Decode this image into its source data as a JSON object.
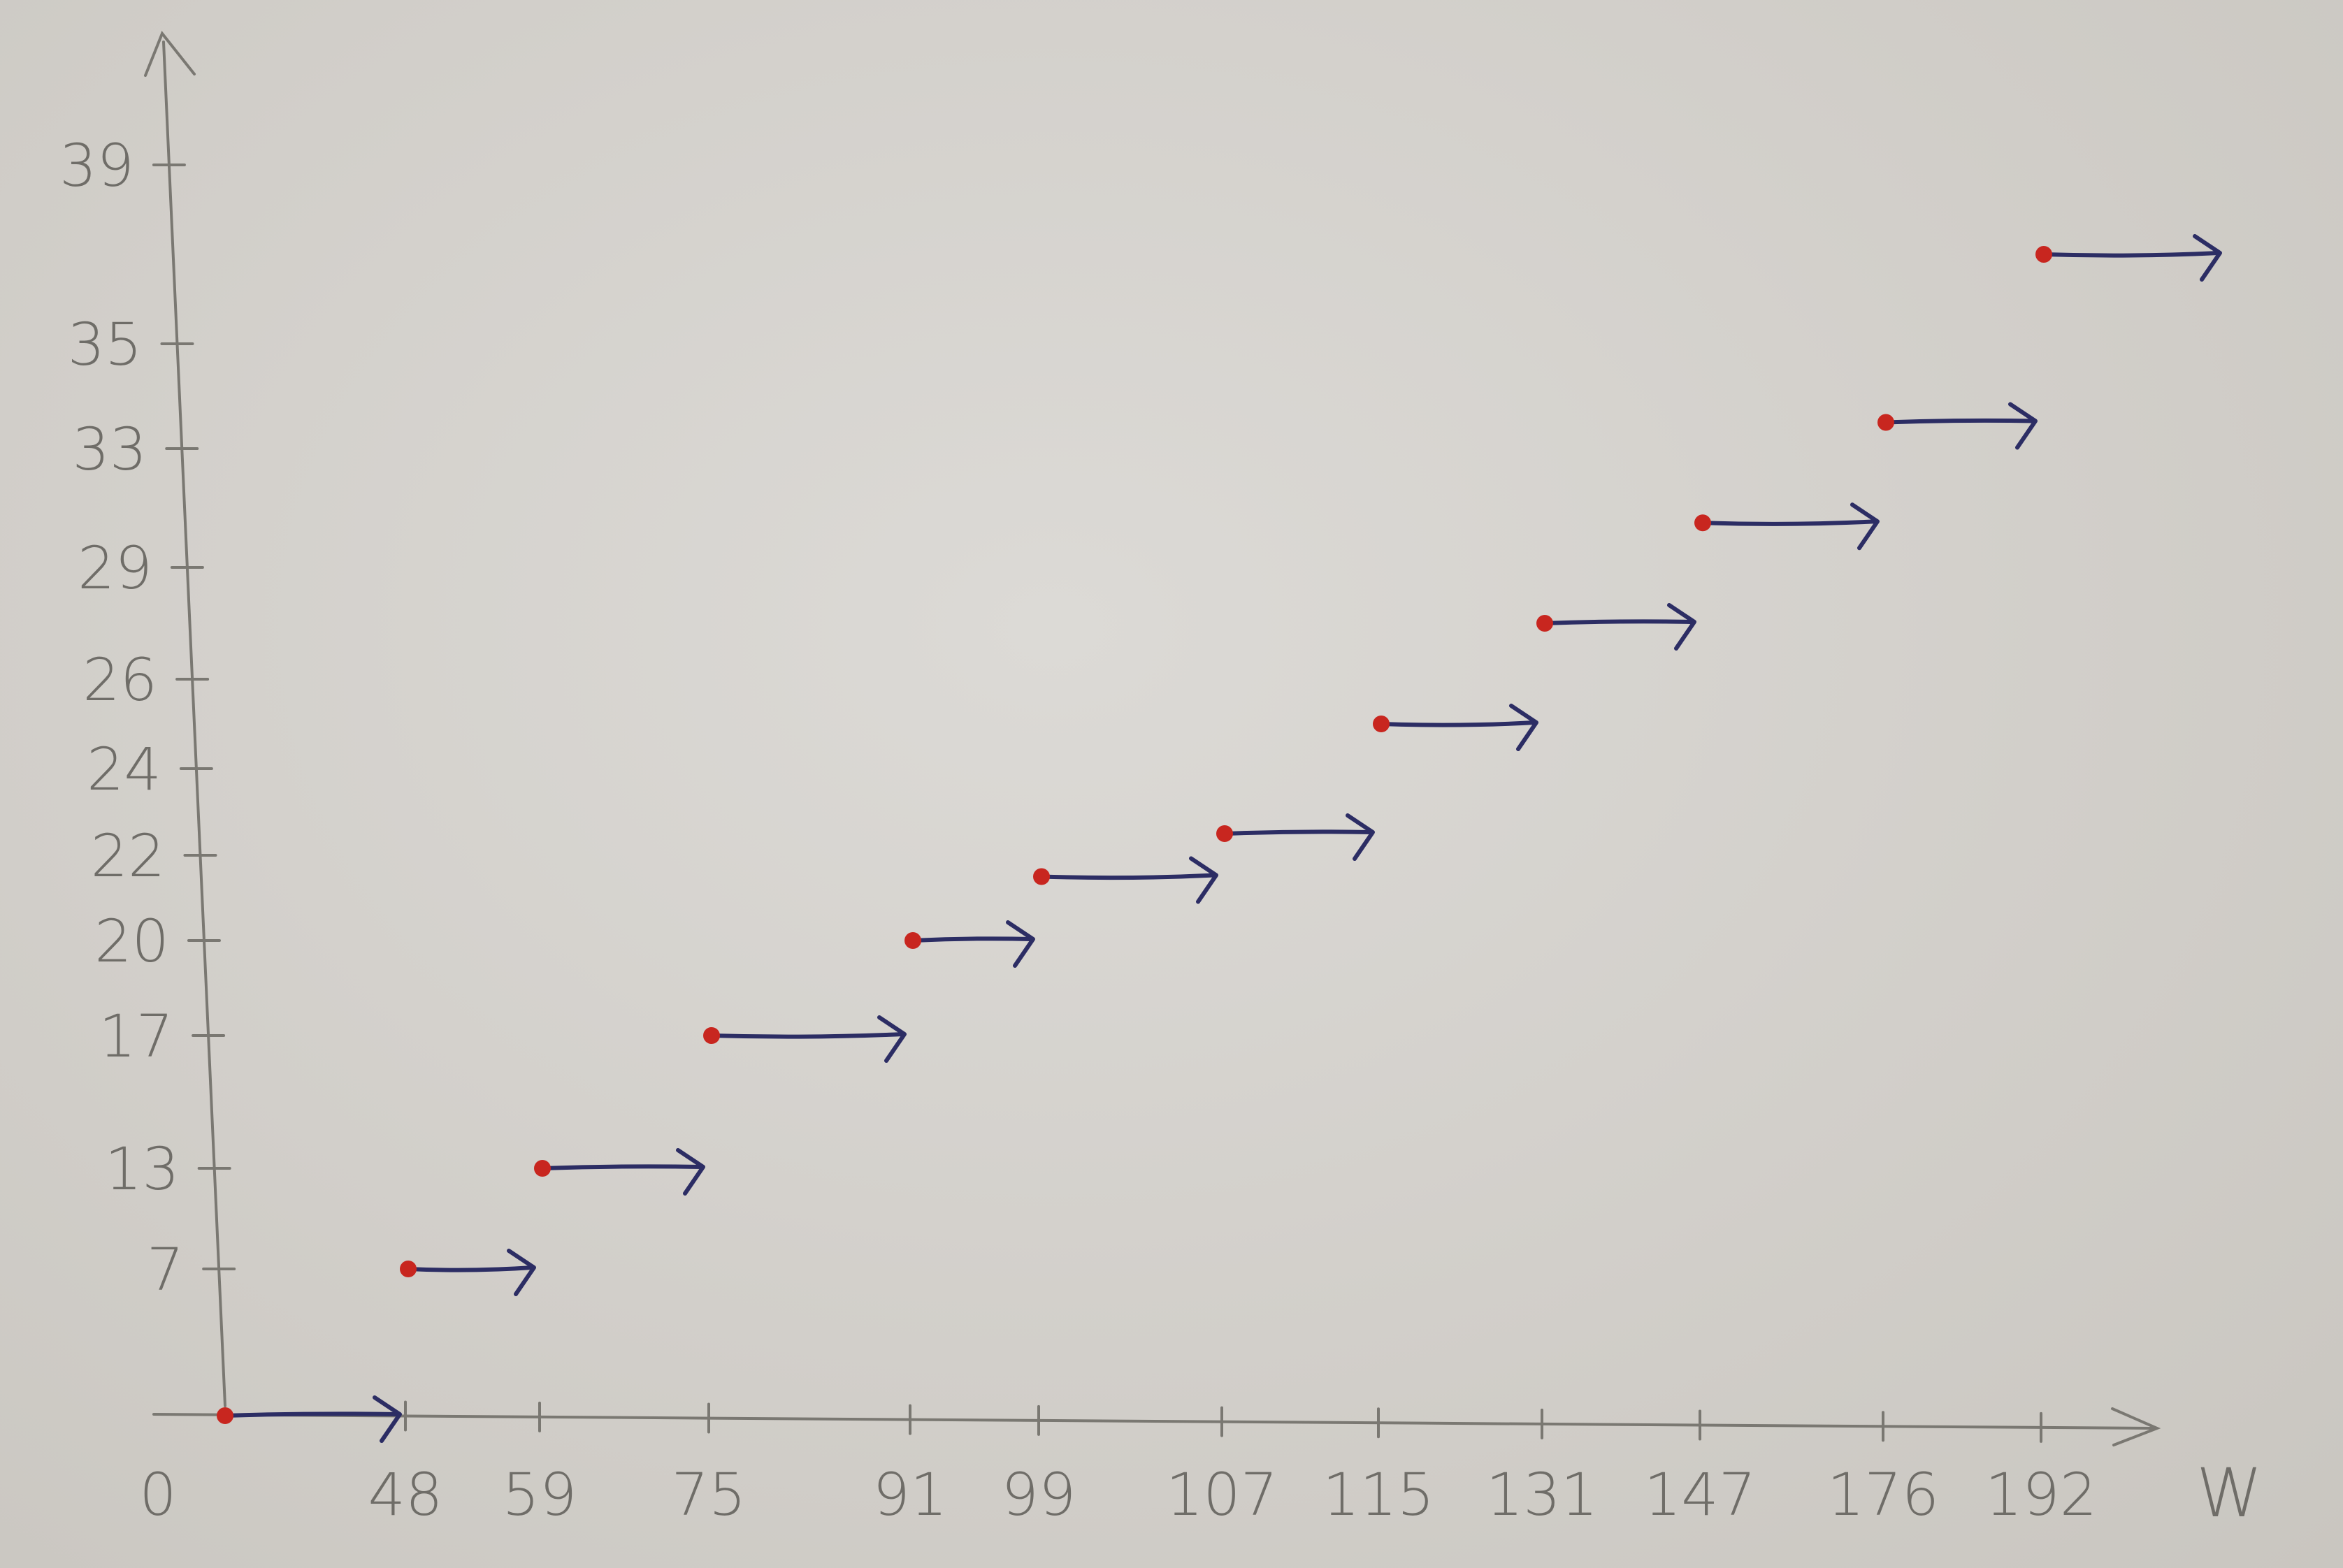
{
  "chart_data": {
    "type": "line",
    "subtype": "step",
    "style": "hand-drawn",
    "title": "",
    "xlabel": "W",
    "ylabel": "",
    "x_ticks": [
      "0",
      "48",
      "59",
      "75",
      "91",
      "99",
      "107",
      "115",
      "131",
      "147",
      "176",
      "192"
    ],
    "y_ticks": [
      "7",
      "13",
      "17",
      "20",
      "22",
      "24",
      "26",
      "29",
      "33",
      "35",
      "39"
    ],
    "series": [
      {
        "values": [
          {
            "x_start": 0,
            "x_end": 48,
            "y": 0
          },
          {
            "x_start": 48,
            "x_end": 59,
            "y": 7
          },
          {
            "x_start": 59,
            "x_end": 75,
            "y": 13
          },
          {
            "x_start": 75,
            "x_end": 91,
            "y": 17
          },
          {
            "x_start": 91,
            "x_end": 99,
            "y": 20
          },
          {
            "x_start": 99,
            "x_end": 107,
            "y": 21.5
          },
          {
            "x_start": 107,
            "x_end": 115,
            "y": 22.5
          },
          {
            "x_start": 115,
            "x_end": 131,
            "y": 25
          },
          {
            "x_start": 131,
            "x_end": 147,
            "y": 27.5
          },
          {
            "x_start": 147,
            "x_end": 176,
            "y": 30.5
          },
          {
            "x_start": 176,
            "x_end": 192,
            "y": 33.5
          },
          {
            "x_start": 192,
            "x_end": null,
            "y": 37
          }
        ]
      }
    ],
    "grid": false,
    "legend": "none",
    "colors": {
      "segment": "#2c2d64",
      "start_dot": "#c8261f",
      "axis": "#7a7872",
      "paper": "#d2cfca"
    }
  }
}
